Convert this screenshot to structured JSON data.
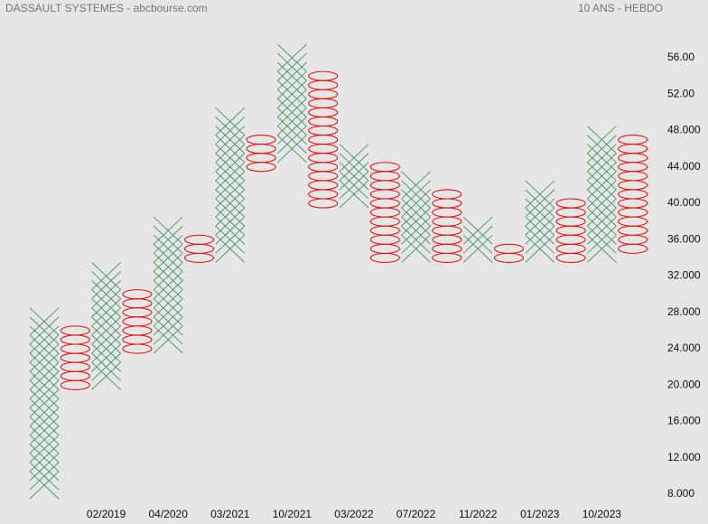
{
  "chart_data": {
    "type": "point_and_figure",
    "title": "DASSAULT SYSTEMES - abcbourse.com",
    "subtitle": "10 ANS - HEBDO",
    "box_size": 1,
    "x_color": "#2e8b57",
    "o_color": "#e8110f",
    "categories": [
      null,
      null,
      "02/2019",
      null,
      "04/2020",
      null,
      "03/2021",
      null,
      "10/2021",
      null,
      "03/2022",
      null,
      "07/2022",
      null,
      "11/2022",
      null,
      "01/2023",
      null,
      "10/2023",
      null
    ],
    "columns": [
      {
        "kind": "X",
        "low": 9,
        "high": 27
      },
      {
        "kind": "O",
        "low": 20,
        "high": 26
      },
      {
        "kind": "X",
        "low": 21,
        "high": 32
      },
      {
        "kind": "O",
        "low": 24,
        "high": 30
      },
      {
        "kind": "X",
        "low": 25,
        "high": 37
      },
      {
        "kind": "O",
        "low": 34,
        "high": 36
      },
      {
        "kind": "X",
        "low": 35,
        "high": 49
      },
      {
        "kind": "O",
        "low": 44,
        "high": 47
      },
      {
        "kind": "X",
        "low": 46,
        "high": 56
      },
      {
        "kind": "O",
        "low": 40,
        "high": 54
      },
      {
        "kind": "X",
        "low": 41,
        "high": 45
      },
      {
        "kind": "O",
        "low": 34,
        "high": 44
      },
      {
        "kind": "X",
        "low": 35,
        "high": 42
      },
      {
        "kind": "O",
        "low": 34,
        "high": 41
      },
      {
        "kind": "X",
        "low": 35,
        "high": 37
      },
      {
        "kind": "O",
        "low": 34,
        "high": 35
      },
      {
        "kind": "X",
        "low": 35,
        "high": 41
      },
      {
        "kind": "O",
        "low": 34,
        "high": 40
      },
      {
        "kind": "X",
        "low": 35,
        "high": 47
      },
      {
        "kind": "O",
        "low": 35,
        "high": 47
      }
    ],
    "ylim": [
      7,
      58
    ],
    "yticks": [
      {
        "value": 56,
        "label": "56.00"
      },
      {
        "value": 52,
        "label": "52.00"
      },
      {
        "value": 48,
        "label": "48.000"
      },
      {
        "value": 44,
        "label": "44.000"
      },
      {
        "value": 40,
        "label": "40.000"
      },
      {
        "value": 36,
        "label": "36.000"
      },
      {
        "value": 32,
        "label": "32.000"
      },
      {
        "value": 28,
        "label": "28.000"
      },
      {
        "value": 24,
        "label": "24.000"
      },
      {
        "value": 20,
        "label": "20.000"
      },
      {
        "value": 16,
        "label": "16.000"
      },
      {
        "value": 12,
        "label": "12.000"
      },
      {
        "value": 8,
        "label": "8.000"
      }
    ]
  }
}
